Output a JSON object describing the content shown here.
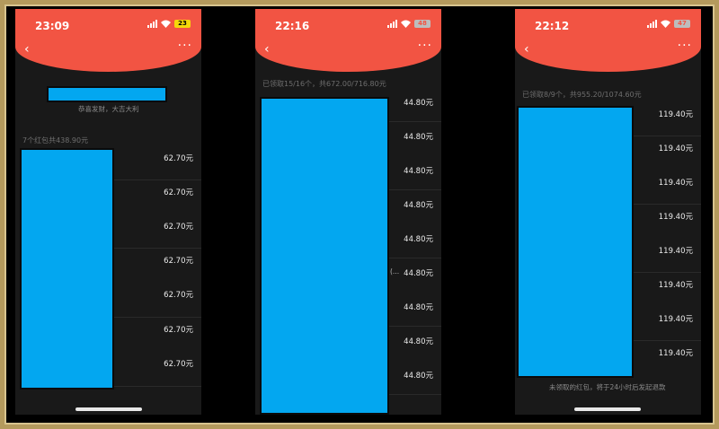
{
  "phones": [
    {
      "time": "23:09",
      "battery": "23",
      "greeting": "恭喜发财，大吉大利",
      "summary": "7个红包共438.90元",
      "amounts": [
        "62.70元",
        "62.70元",
        "62.70元",
        "62.70元",
        "62.70元",
        "62.70元",
        "62.70元"
      ]
    },
    {
      "time": "22:16",
      "battery": "48",
      "summary": "已领取15/16个，共672.00/716.80元",
      "amounts": [
        "44.80元",
        "44.80元",
        "44.80元",
        "44.80元",
        "44.80元",
        "44.80元",
        "44.80元",
        "44.80元",
        "44.80元"
      ],
      "side_note": "(..."
    },
    {
      "time": "22:12",
      "battery": "47",
      "summary": "已领取8/9个，共955.20/1074.60元",
      "amounts": [
        "119.40元",
        "119.40元",
        "119.40元",
        "119.40元",
        "119.40元",
        "119.40元",
        "119.40元",
        "119.40元"
      ],
      "footer": "未领取的红包，将于24小时后发起退款"
    }
  ],
  "nav": {
    "back": "‹",
    "more": "···"
  },
  "colors": {
    "header_red": "#f25443",
    "redaction_blue": "#03a7f0",
    "background": "#191919"
  }
}
